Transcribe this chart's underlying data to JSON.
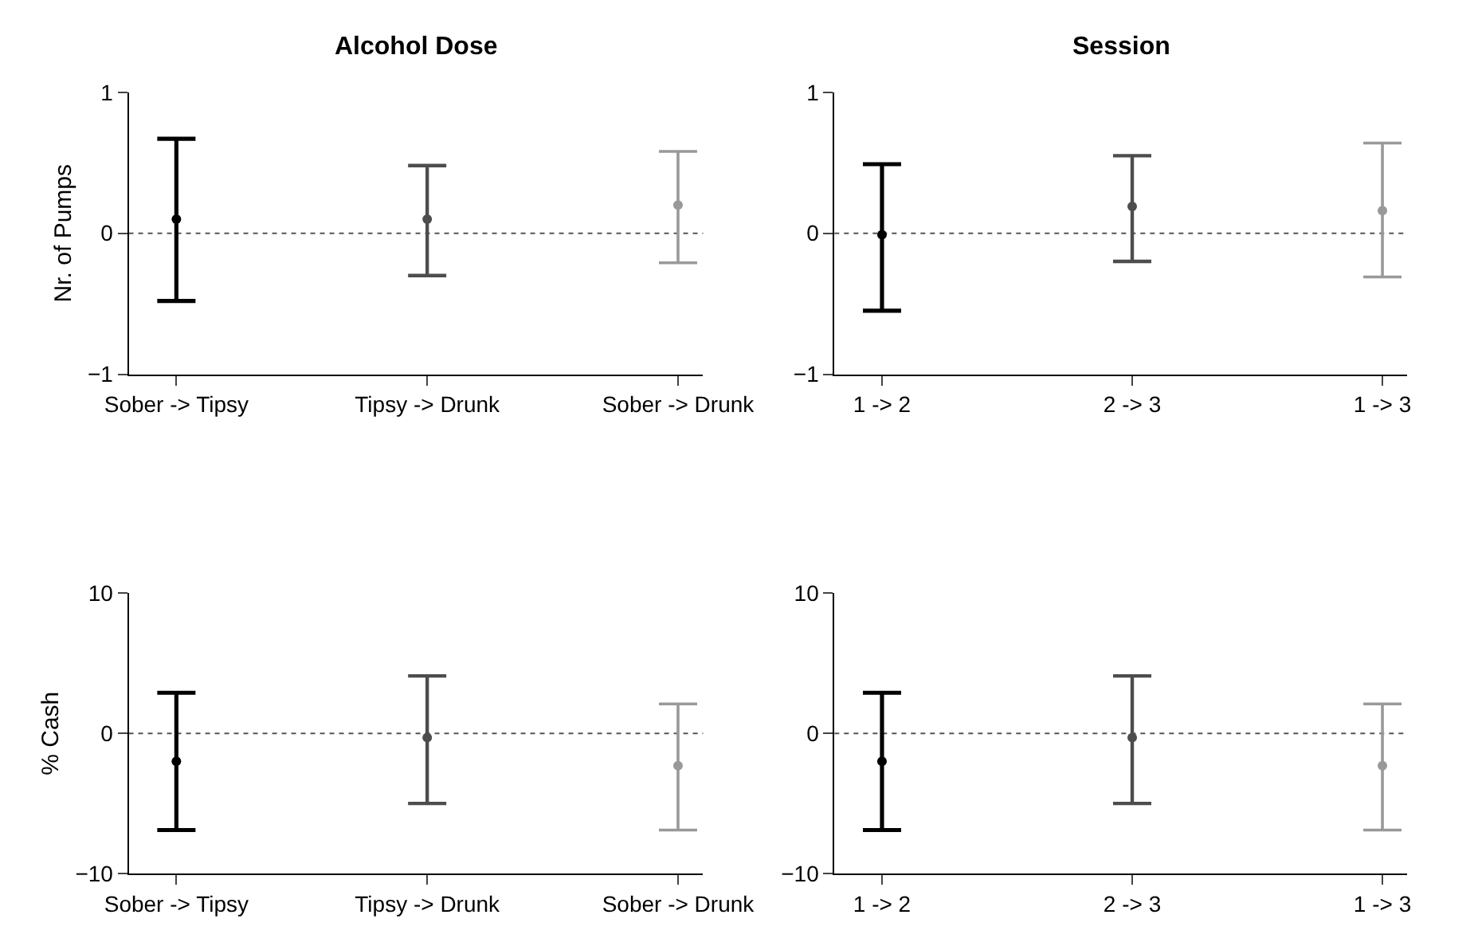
{
  "chart_data": [
    {
      "type": "scatter",
      "title": "Alcohol Dose",
      "ylabel": "Nr. of Pumps",
      "categories": [
        "Sober -> Tipsy",
        "Tipsy -> Drunk",
        "Sober -> Drunk"
      ],
      "values": [
        0.1,
        0.1,
        0.2
      ],
      "errors": [
        [
          -0.48,
          0.67
        ],
        [
          -0.3,
          0.48
        ],
        [
          -0.21,
          0.58
        ]
      ],
      "colors": [
        "#000000",
        "#4d4d4d",
        "#999999"
      ],
      "ylim": [
        -1,
        1
      ],
      "yticks": [
        -1,
        0,
        1
      ],
      "ref_lines": [
        {
          "axis": "y",
          "value": 0,
          "line_style": "dotted",
          "color": "#555555"
        }
      ],
      "marker": "circle"
    },
    {
      "type": "scatter",
      "title": "Session",
      "categories": [
        "1 -> 2",
        "2 -> 3",
        "1 -> 3"
      ],
      "values": [
        -0.01,
        0.19,
        0.16
      ],
      "errors": [
        [
          -0.55,
          0.49
        ],
        [
          -0.2,
          0.55
        ],
        [
          -0.31,
          0.64
        ]
      ],
      "colors": [
        "#000000",
        "#4d4d4d",
        "#999999"
      ],
      "ylim": [
        -1,
        1
      ],
      "yticks": [
        -1,
        0,
        1
      ],
      "ref_lines": [
        {
          "axis": "y",
          "value": 0,
          "line_style": "dotted",
          "color": "#555555"
        }
      ],
      "marker": "circle"
    },
    {
      "type": "scatter",
      "ylabel": "% Cash",
      "categories": [
        "Sober -> Tipsy",
        "Tipsy -> Drunk",
        "Sober -> Drunk"
      ],
      "values": [
        -2.0,
        -0.3,
        -2.3
      ],
      "errors": [
        [
          -6.9,
          2.9
        ],
        [
          -5.0,
          4.1
        ],
        [
          -6.9,
          2.1
        ]
      ],
      "colors": [
        "#000000",
        "#4d4d4d",
        "#999999"
      ],
      "ylim": [
        -10,
        10
      ],
      "yticks": [
        -10,
        0,
        10
      ],
      "ref_lines": [
        {
          "axis": "y",
          "value": 0,
          "line_style": "dotted",
          "color": "#555555"
        }
      ],
      "marker": "circle"
    },
    {
      "type": "scatter",
      "categories": [
        "1 -> 2",
        "2 -> 3",
        "1 -> 3"
      ],
      "values": [
        -2.0,
        -0.3,
        -2.3
      ],
      "errors": [
        [
          -6.9,
          2.9
        ],
        [
          -5.0,
          4.1
        ],
        [
          -6.9,
          2.1
        ]
      ],
      "colors": [
        "#000000",
        "#4d4d4d",
        "#999999"
      ],
      "ylim": [
        -10,
        10
      ],
      "yticks": [
        -10,
        0,
        10
      ],
      "ref_lines": [
        {
          "axis": "y",
          "value": 0,
          "line_style": "dotted",
          "color": "#555555"
        }
      ],
      "marker": "circle"
    }
  ]
}
